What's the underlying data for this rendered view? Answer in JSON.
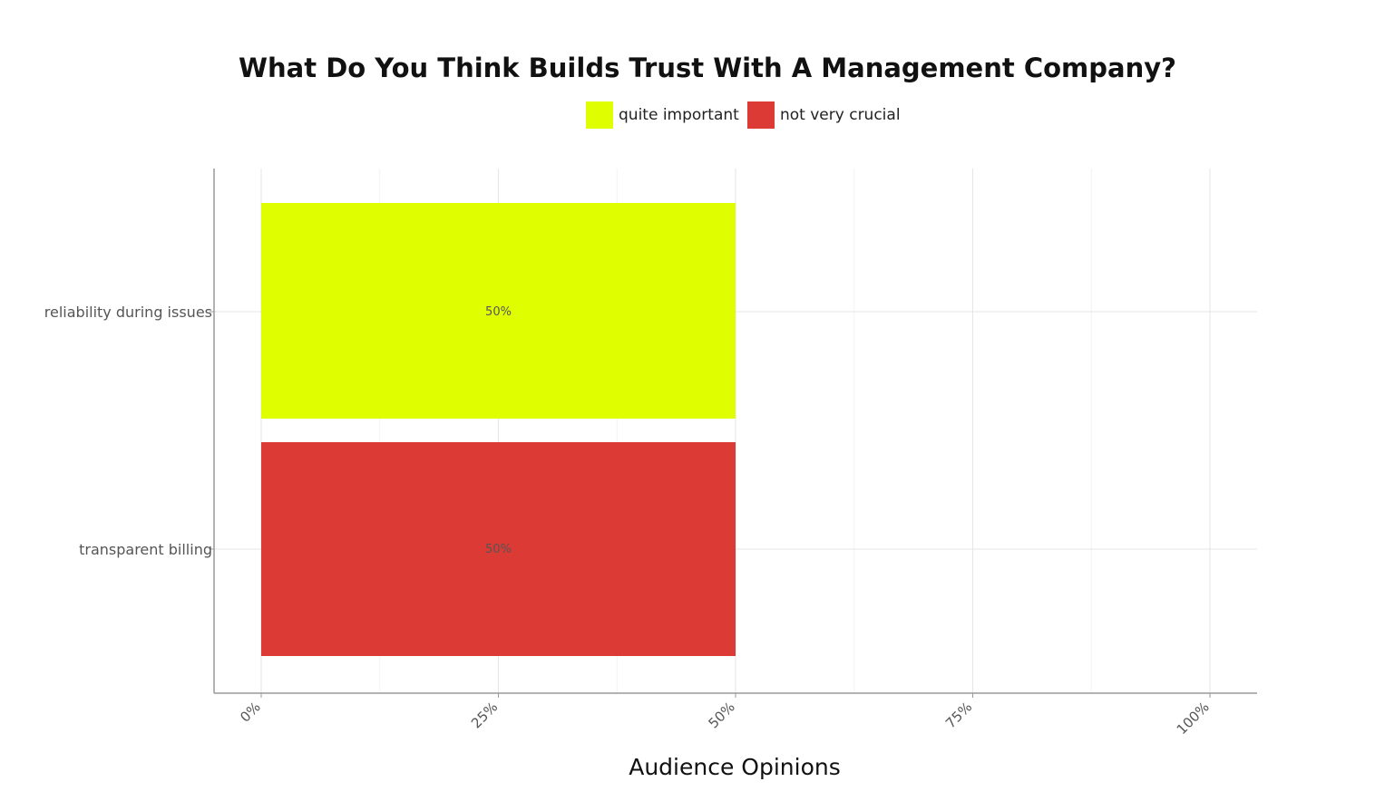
{
  "chart_data": {
    "type": "bar",
    "orientation": "horizontal",
    "title": "What Do You Think Builds Trust With A Management Company?",
    "xlabel": "Audience Opinions",
    "ylabel": "",
    "categories": [
      "reliability during issues",
      "transparent billing"
    ],
    "values": [
      50,
      50
    ],
    "bar_labels": [
      "50%",
      "50%"
    ],
    "bar_series": [
      "quite important",
      "not very crucial"
    ],
    "xlim": [
      0,
      100
    ],
    "x_ticks": [
      0,
      25,
      50,
      75,
      100
    ],
    "x_tick_labels": [
      "0%",
      "25%",
      "50%",
      "75%",
      "100%"
    ],
    "legend": [
      {
        "name": "quite important",
        "color": "#dfff00"
      },
      {
        "name": "not very crucial",
        "color": "#dc3a35"
      }
    ],
    "legend_position": "top-center",
    "grid": true
  }
}
